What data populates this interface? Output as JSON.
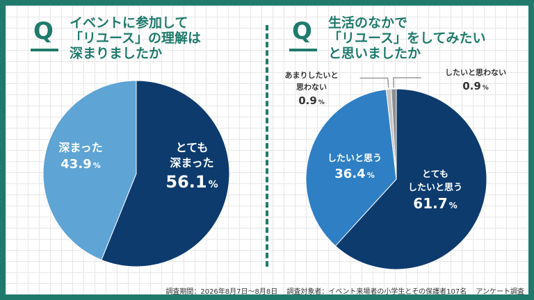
{
  "questions": [
    {
      "q_mark": "Q",
      "text": "イベントに参加して\n「リユース」の理解は\n深まりましたか"
    },
    {
      "q_mark": "Q",
      "text": "生活のなかで\n「リユース」をしてみたい\nと思いましたか"
    }
  ],
  "chart_data": [
    {
      "type": "pie",
      "title": "イベントに参加して「リユース」の理解は深まりましたか",
      "slices": [
        {
          "label_lines": [
            "とても",
            "深まった"
          ],
          "value": 56.1,
          "value_text": "56.1",
          "unit": "%",
          "color": "#0d3b6e",
          "label_color": "#ffffff"
        },
        {
          "label_lines": [
            "深まった"
          ],
          "value": 43.9,
          "value_text": "43.9",
          "unit": "%",
          "color": "#5ea4d4",
          "label_color": "#ffffff"
        }
      ]
    },
    {
      "type": "pie",
      "title": "生活のなかで「リユース」をしてみたいと思いましたか",
      "slices": [
        {
          "label_lines": [
            "とても",
            "したいと思う"
          ],
          "value": 61.7,
          "value_text": "61.7",
          "unit": "%",
          "color": "#0d3b6e",
          "label_color": "#ffffff"
        },
        {
          "label_lines": [
            "したいと思う"
          ],
          "value": 36.4,
          "value_text": "36.4",
          "unit": "%",
          "color": "#2f7fc4",
          "label_color": "#ffffff"
        },
        {
          "label_lines": [
            "あまりしたいと",
            "思わない"
          ],
          "value": 0.9,
          "value_text": "0.9",
          "unit": "%",
          "color": "#c6c6c6",
          "label_color": "#333333"
        },
        {
          "label_lines": [
            "したいと思わない"
          ],
          "value": 0.9,
          "value_text": "0.9",
          "unit": "%",
          "color": "#8e8e8e",
          "label_color": "#333333"
        }
      ]
    }
  ],
  "footer": "調査期間：2026年8月7日〜8月8日　 調査対象者：イベント来場者の小学生とその保護者107名　 アンケート調査"
}
